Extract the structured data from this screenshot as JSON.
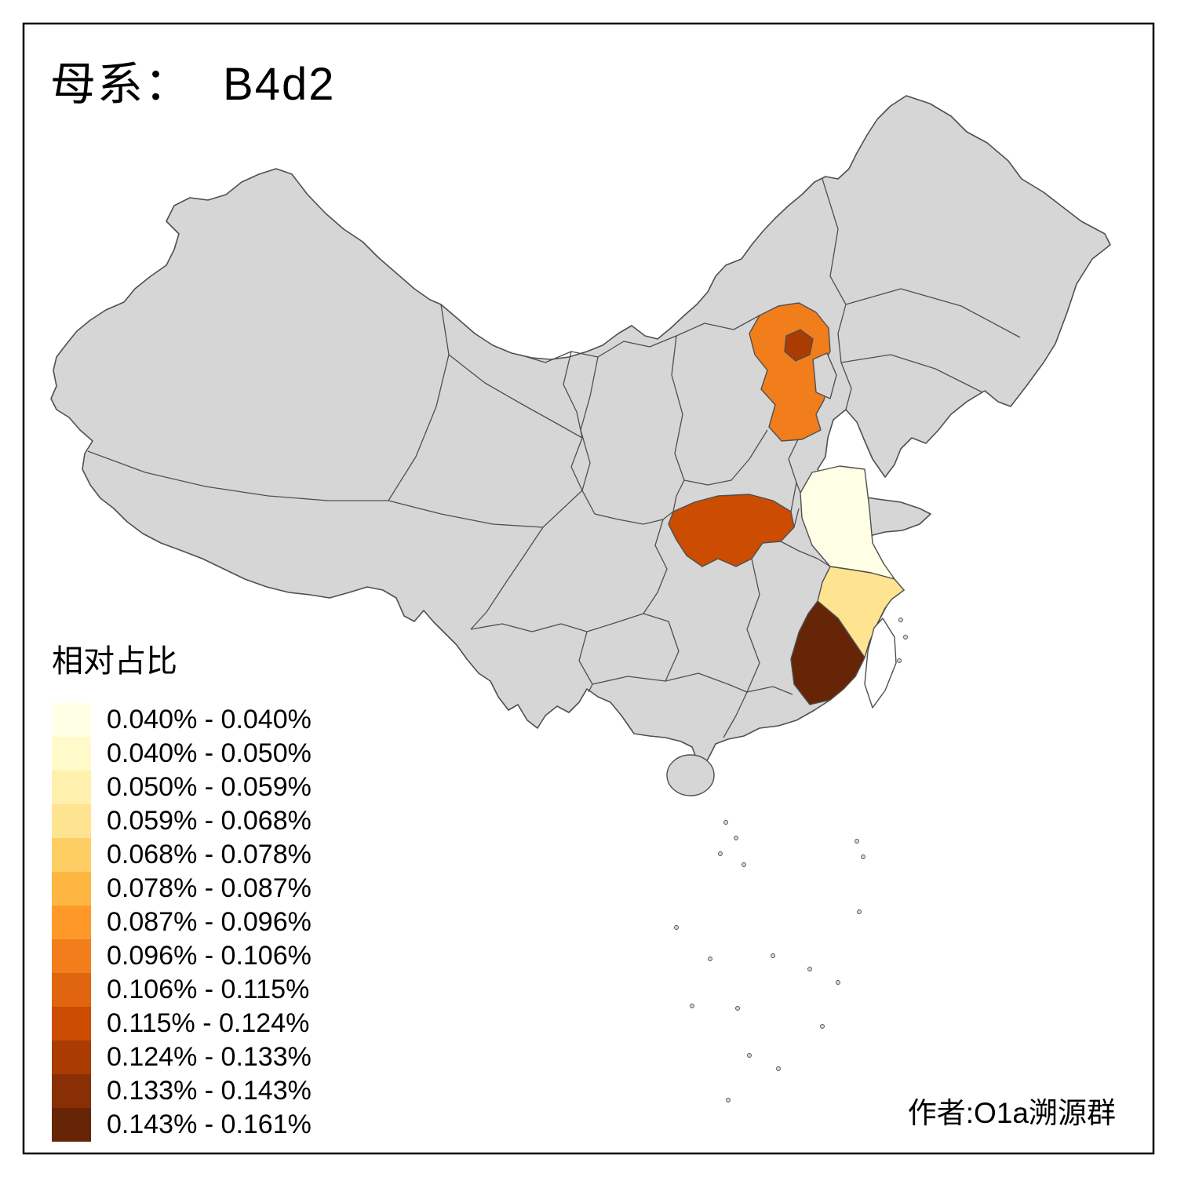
{
  "title": {
    "prefix": "母系：",
    "value": "B4d2"
  },
  "legend": {
    "title": "相对占比",
    "bins": [
      {
        "range": "0.040% - 0.040%",
        "color": "#FFFFE5"
      },
      {
        "range": "0.040% - 0.050%",
        "color": "#FFFACA"
      },
      {
        "range": "0.050% - 0.059%",
        "color": "#FFF0AE"
      },
      {
        "range": "0.059% - 0.068%",
        "color": "#FEE391"
      },
      {
        "range": "0.068% - 0.078%",
        "color": "#FECE65"
      },
      {
        "range": "0.078% - 0.087%",
        "color": "#FEB642"
      },
      {
        "range": "0.087% - 0.096%",
        "color": "#FE9929"
      },
      {
        "range": "0.096% - 0.106%",
        "color": "#F27E1B"
      },
      {
        "range": "0.106% - 0.115%",
        "color": "#E1640E"
      },
      {
        "range": "0.115% - 0.124%",
        "color": "#CC4C02"
      },
      {
        "range": "0.124% - 0.133%",
        "color": "#AA3C03"
      },
      {
        "range": "0.133% - 0.143%",
        "color": "#882F05"
      },
      {
        "range": "0.143% - 0.161%",
        "color": "#662506"
      }
    ]
  },
  "attribution": "作者:O1a溯源群",
  "map": {
    "no_data_color": "#d6d6d6",
    "taiwan_color": "#ffffff",
    "border_color": "#4f4f4f",
    "frame_color": "#000000",
    "regions": {
      "hebei": {
        "name": "河北",
        "color": "#F27E1B",
        "range": "0.096% - 0.106%"
      },
      "beijing": {
        "name": "北京",
        "color": "#AA3C03",
        "range": "0.124% - 0.133%"
      },
      "hubei": {
        "name": "湖北",
        "color": "#CC4C02",
        "range": "0.115% - 0.124%"
      },
      "jiangsu": {
        "name": "江苏",
        "color": "#FFFFE5",
        "range": "0.040% - 0.040%"
      },
      "zhejiang": {
        "name": "浙江",
        "color": "#FEE391",
        "range": "0.059% - 0.068%"
      },
      "fujian": {
        "name": "福建",
        "color": "#662506",
        "range": "0.143% - 0.161%"
      }
    }
  },
  "chart_data": {
    "type": "choropleth",
    "map_of": "China provinces",
    "title": "母系: B4d2",
    "legend_title": "相对占比",
    "value_unit": "%",
    "value_min": 0.04,
    "value_max": 0.161,
    "scale_bins": [
      "0.040% - 0.040%",
      "0.040% - 0.050%",
      "0.050% - 0.059%",
      "0.059% - 0.068%",
      "0.068% - 0.078%",
      "0.078% - 0.087%",
      "0.087% - 0.096%",
      "0.096% - 0.106%",
      "0.106% - 0.115%",
      "0.115% - 0.124%",
      "0.124% - 0.133%",
      "0.133% - 0.143%",
      "0.143% - 0.161%"
    ],
    "regions": [
      {
        "region": "河北 Hebei",
        "bin": "0.096% - 0.106%"
      },
      {
        "region": "北京 Beijing",
        "bin": "0.124% - 0.133%"
      },
      {
        "region": "湖北 Hubei",
        "bin": "0.115% - 0.124%"
      },
      {
        "region": "江苏 Jiangsu",
        "bin": "0.040% - 0.040%"
      },
      {
        "region": "浙江 Zhejiang",
        "bin": "0.059% - 0.068%"
      },
      {
        "region": "福建 Fujian",
        "bin": "0.143% - 0.161%"
      }
    ],
    "no_data_regions": "all other provinces shown gray"
  }
}
